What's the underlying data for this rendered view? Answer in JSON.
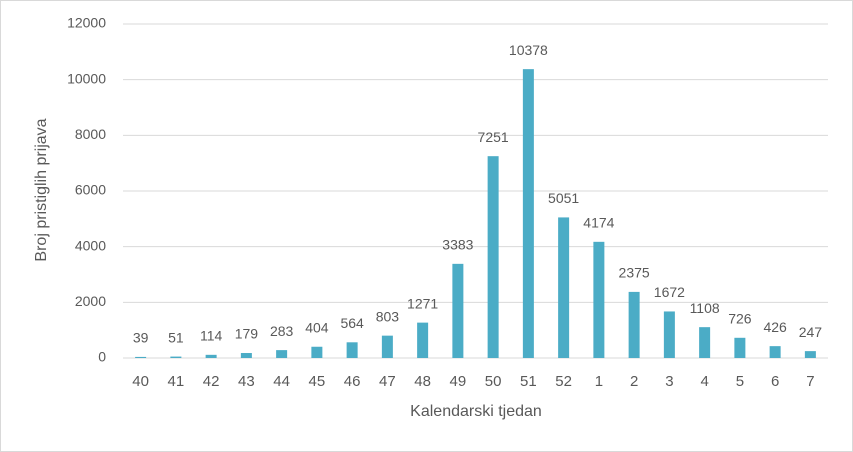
{
  "chart_data": {
    "type": "bar",
    "categories": [
      "40",
      "41",
      "42",
      "43",
      "44",
      "45",
      "46",
      "47",
      "48",
      "49",
      "50",
      "51",
      "52",
      "1",
      "2",
      "3",
      "4",
      "5",
      "6",
      "7"
    ],
    "values": [
      39,
      51,
      114,
      179,
      283,
      404,
      564,
      803,
      1271,
      3383,
      7251,
      10378,
      5051,
      4174,
      2375,
      1672,
      1108,
      726,
      426,
      247
    ],
    "color": "#4bacc6",
    "ylim": [
      0,
      12000
    ],
    "yticks": [
      0,
      2000,
      4000,
      6000,
      8000,
      10000,
      12000
    ],
    "grid": true,
    "x_label": "Kalendarski tjedan",
    "y_label": "Broj pristiglih prijava"
  }
}
